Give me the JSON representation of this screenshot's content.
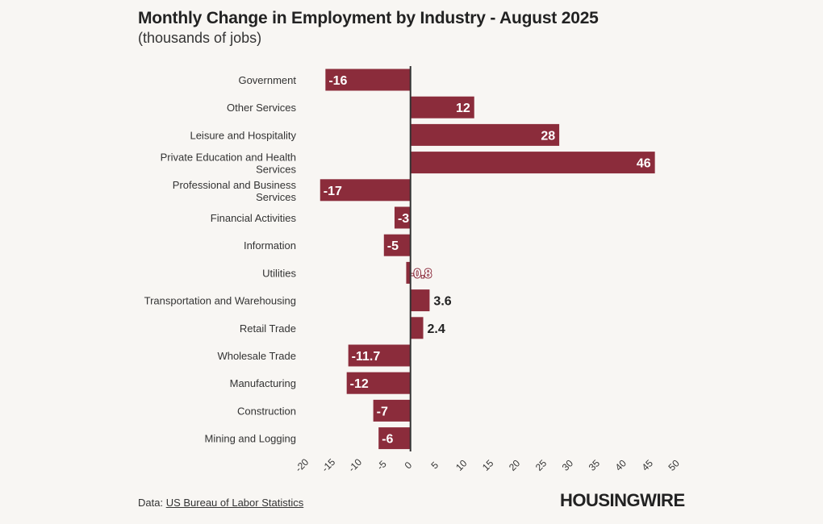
{
  "chart_data": {
    "type": "bar",
    "orientation": "horizontal",
    "title": "Monthly Change in Employment by Industry - August 2025",
    "subtitle": "(thousands of jobs)",
    "categories": [
      "Government",
      "Other Services",
      "Leisure and Hospitality",
      "Private Education and Health Services",
      "Professional and Business Services",
      "Financial Activities",
      "Information",
      "Utilities",
      "Transportation and Warehousing",
      "Retail Trade",
      "Wholesale Trade",
      "Manufacturing",
      "Construction",
      "Mining and Logging"
    ],
    "values": [
      -16,
      12,
      28,
      46,
      -17,
      -3,
      -5,
      -0.8,
      3.6,
      2.4,
      -11.7,
      -12,
      -7,
      -6
    ],
    "value_labels": [
      "-16",
      "12",
      "28",
      "46",
      "-17",
      "-3",
      "-5",
      "-0.8",
      "3.6",
      "2.4",
      "-11.7",
      "-12",
      "-7",
      "-6"
    ],
    "xlim": [
      -20,
      50
    ],
    "xticks": [
      "-20",
      "-15",
      "-10",
      "-5",
      "0",
      "5",
      "10",
      "15",
      "20",
      "25",
      "30",
      "35",
      "40",
      "45",
      "50"
    ],
    "xlabel": "",
    "ylabel": "",
    "grid": false,
    "bar_color": "#8b2c3b"
  },
  "footer": {
    "source_prefix": "Data: ",
    "source_link": "US Bureau of Labor Statistics",
    "logo": "HOUSINGWIRE"
  }
}
